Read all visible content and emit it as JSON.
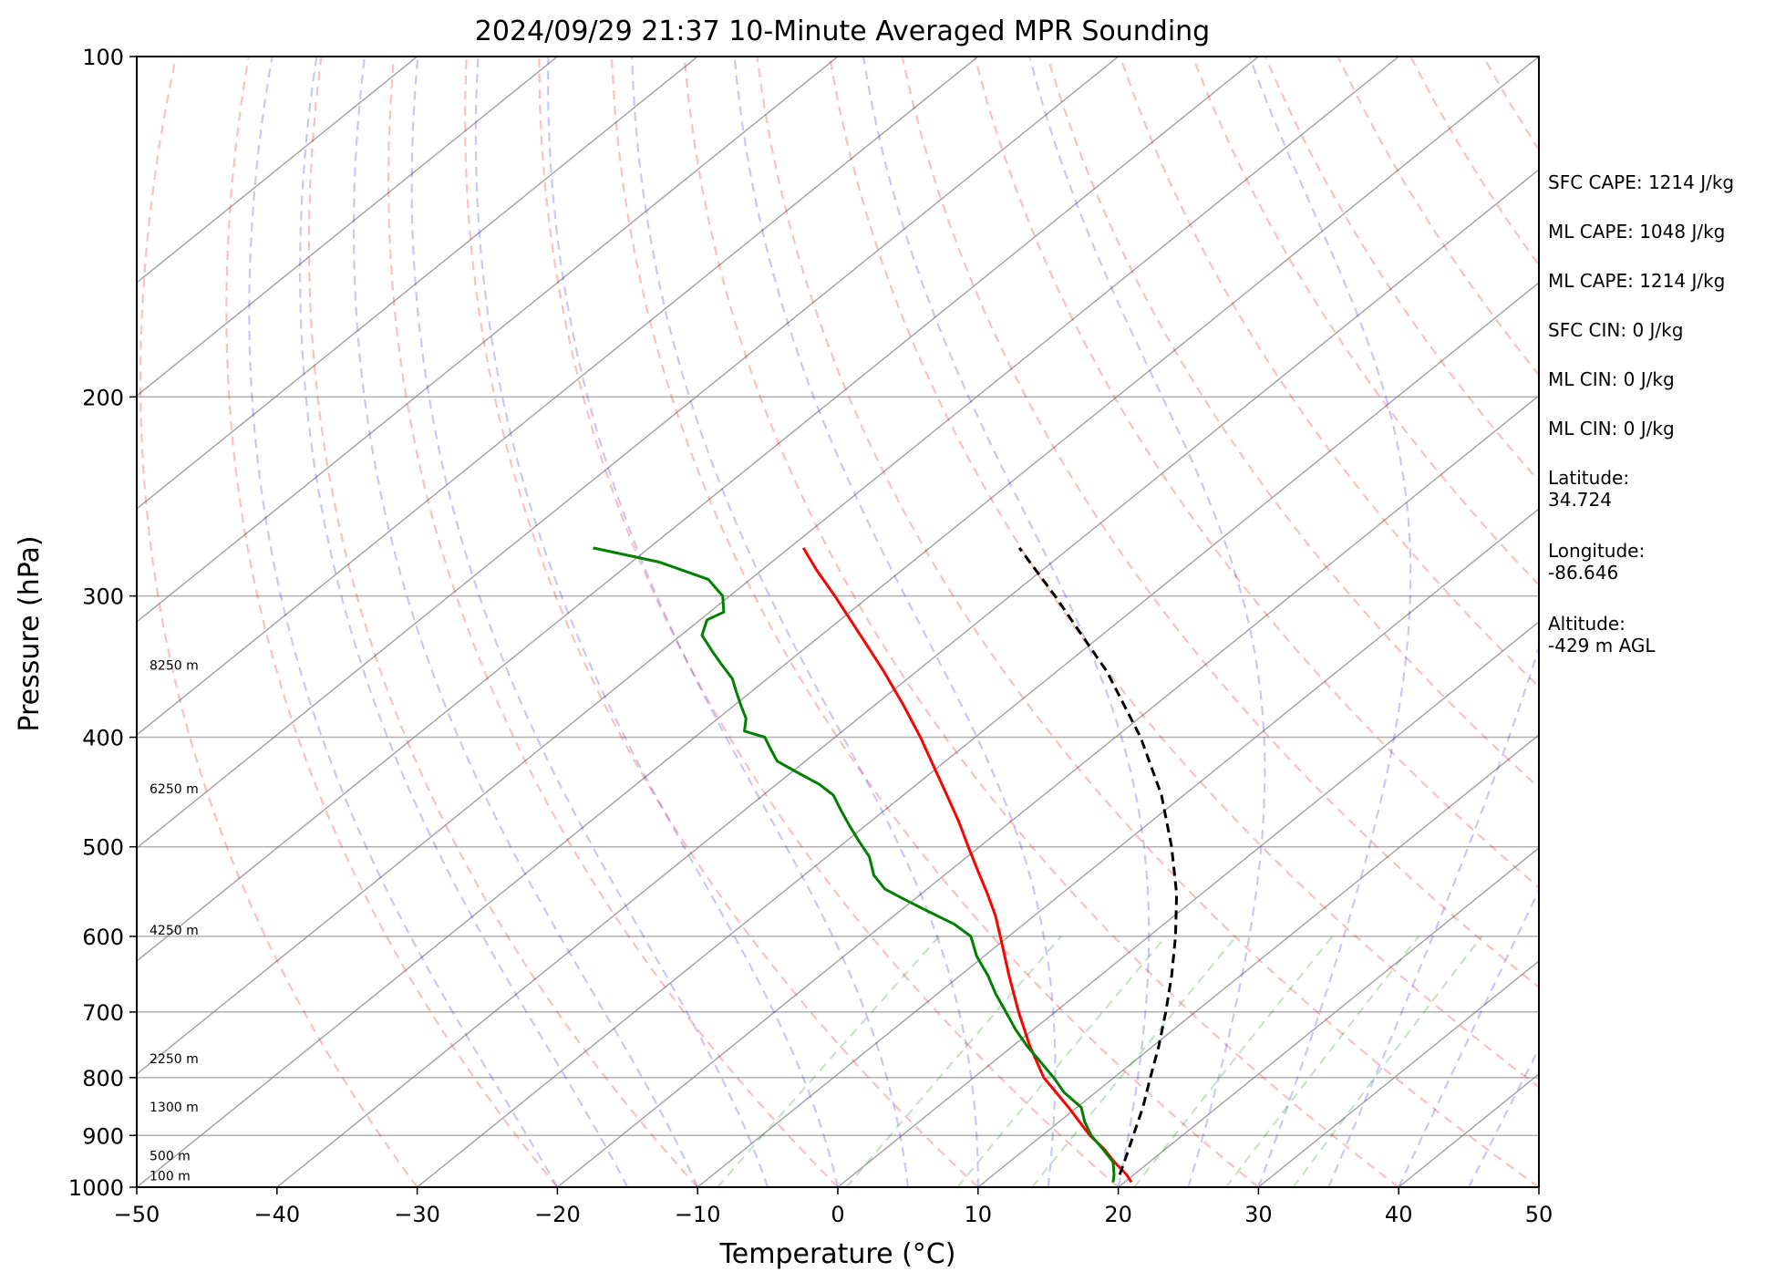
{
  "chart_data": {
    "type": "line",
    "title": "2024/09/29 21:37 10-Minute Averaged MPR Sounding",
    "xlabel": "Temperature (°C)",
    "ylabel": "Pressure (hPa)",
    "xlim": [
      -50,
      50
    ],
    "ylim": [
      1000,
      100
    ],
    "y_scale": "log",
    "x_ticks": [
      "−50",
      "−40",
      "−30",
      "−20",
      "−10",
      "0",
      "10",
      "20",
      "30",
      "40",
      "50"
    ],
    "y_ticks": [
      "100",
      "200",
      "300",
      "400",
      "500",
      "600",
      "700",
      "800",
      "900",
      "1000"
    ],
    "grid": true,
    "height_labels": [
      "8250 m",
      "6250 m",
      "4250 m",
      "2250 m",
      "1300 m",
      "500 m",
      "100 m"
    ],
    "colors": {
      "temperature": "#ff0000",
      "dewpoint": "#008000",
      "parcel": "#000000",
      "dry_adiabats": "#ff0000",
      "moist_adiabats": "#0000ff",
      "mixing_ratio": "#008000",
      "isotherms": "#808080"
    },
    "series": [
      {
        "pressure": [
          990,
          975,
          950,
          925,
          900,
          850,
          800,
          750,
          700,
          650,
          600,
          575,
          550,
          525,
          500,
          475,
          450,
          425,
          400,
          375,
          350,
          325,
          300,
          285,
          272
        ],
        "temperature": [
          20.5,
          19.5,
          17.5,
          15.6,
          13.4,
          9.4,
          5.0,
          1.2,
          -2.6,
          -6.5,
          -10.6,
          -12.8,
          -15.3,
          -18.0,
          -20.8,
          -23.7,
          -26.9,
          -30.3,
          -33.9,
          -37.9,
          -42.3,
          -47.2,
          -52.5,
          -56.0,
          -59.0
        ]
      },
      {
        "pressure": [
          990,
          975,
          950,
          925,
          900,
          875,
          850,
          825,
          800,
          775,
          750,
          725,
          700,
          675,
          650,
          625,
          600,
          585,
          575,
          565,
          555,
          545,
          530,
          510,
          495,
          480,
          465,
          450,
          440,
          430,
          420,
          410,
          400,
          395,
          385,
          375,
          365,
          355,
          345,
          335,
          325,
          315,
          310,
          300,
          290,
          280,
          272
        ],
        "dewpoint": [
          19.2,
          18.6,
          17.4,
          15.5,
          13.5,
          11.8,
          10.3,
          7.8,
          5.7,
          3.4,
          1.0,
          -1.3,
          -3.5,
          -5.8,
          -8.0,
          -10.5,
          -12.7,
          -15.0,
          -17.0,
          -19.0,
          -21.0,
          -23.0,
          -25.0,
          -27.0,
          -29.0,
          -31.0,
          -33.0,
          -35.0,
          -37.0,
          -39.5,
          -42.0,
          -43.5,
          -45.0,
          -47.0,
          -48.0,
          -49.5,
          -51.0,
          -52.5,
          -54.5,
          -56.5,
          -58.5,
          -59.5,
          -59.0,
          -60.5,
          -63.0,
          -68.0,
          -74.0
        ]
      },
      {
        "pressure": [
          975,
          950,
          900,
          850,
          800,
          750,
          700,
          650,
          600,
          550,
          500,
          450,
          400,
          350,
          300,
          272
        ],
        "parcel_temperature": [
          19.0,
          18.2,
          16.5,
          14.7,
          12.6,
          10.4,
          7.9,
          5.1,
          1.9,
          -1.8,
          -6.3,
          -11.6,
          -18.2,
          -26.4,
          -36.8,
          -43.6
        ]
      }
    ]
  },
  "info": {
    "sfc_cape": "SFC CAPE: 1214 J/kg",
    "ml_cape_1": "ML CAPE: 1048 J/kg",
    "ml_cape_2": "ML CAPE: 1214 J/kg",
    "sfc_cin": "SFC CIN: 0 J/kg",
    "ml_cin_1": "ML CIN: 0 J/kg",
    "ml_cin_2": "ML CIN: 0 J/kg",
    "latitude": "Latitude:\n34.724",
    "longitude": "Longitude:\n-86.646",
    "altitude": "Altitude:\n-429 m AGL"
  }
}
